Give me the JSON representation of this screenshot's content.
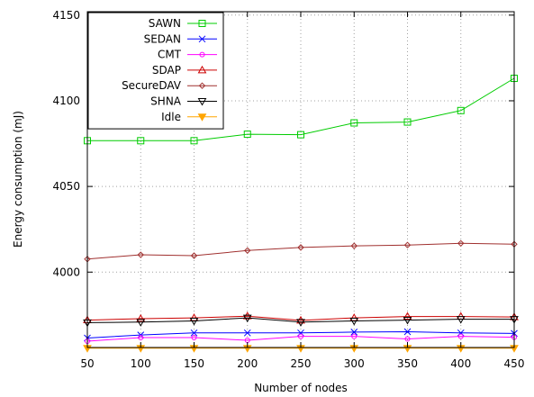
{
  "chart_data": {
    "type": "line",
    "title": "",
    "xlabel": "Number of nodes",
    "ylabel": "Energy consumption (mJ)",
    "x": [
      50,
      100,
      150,
      200,
      250,
      300,
      350,
      400,
      450
    ],
    "xlim": [
      50,
      450
    ],
    "ylim": [
      3956,
      4152
    ],
    "xticks": [
      50,
      100,
      150,
      200,
      250,
      300,
      350,
      400,
      450
    ],
    "yticks": [
      4000,
      4050,
      4100,
      4150
    ],
    "grid": true,
    "legend_position": "top-left",
    "series": [
      {
        "name": "SAWN",
        "color": "#00cc00",
        "marker": "square",
        "values": [
          4076.7,
          4076.7,
          4076.7,
          4080.5,
          4080.2,
          4087.1,
          4087.6,
          4094.3,
          4113.1
        ]
      },
      {
        "name": "SEDAN",
        "color": "#0000ff",
        "marker": "x",
        "values": [
          3961.5,
          3963.3,
          3964.5,
          3964.5,
          3964.5,
          3965.0,
          3965.2,
          3964.5,
          3964.2
        ]
      },
      {
        "name": "CMT",
        "color": "#ff00ff",
        "marker": "circle",
        "values": [
          3959.7,
          3961.8,
          3961.8,
          3960.2,
          3962.5,
          3962.5,
          3961.0,
          3962.5,
          3962.0
        ]
      },
      {
        "name": "SDAP",
        "color": "#cc0000",
        "marker": "triangle",
        "values": [
          3972.0,
          3972.8,
          3973.3,
          3974.3,
          3971.8,
          3973.3,
          3974.1,
          3974.1,
          3973.8
        ]
      },
      {
        "name": "SecureDAV",
        "color": "#a0302f",
        "marker": "diamond",
        "values": [
          4007.6,
          4010.1,
          4009.6,
          4012.6,
          4014.4,
          4015.3,
          4015.8,
          4016.8,
          4016.3
        ]
      },
      {
        "name": "SHNA",
        "color": "#000000",
        "marker": "triangle-down",
        "values": [
          3970.5,
          3970.8,
          3971.5,
          3973.3,
          3970.8,
          3971.5,
          3972.0,
          3972.5,
          3972.5
        ]
      },
      {
        "name": "Idle",
        "color": "#ffa500",
        "marker": "triangle-down-filled",
        "values": [
          3955.6,
          3955.6,
          3955.6,
          3955.6,
          3955.6,
          3955.6,
          3955.6,
          3955.6,
          3955.6
        ]
      }
    ]
  }
}
